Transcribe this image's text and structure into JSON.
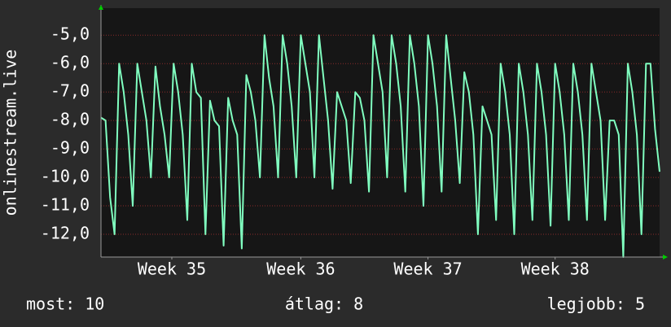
{
  "chart_data": {
    "type": "line",
    "ylabel": "onlinestream.live",
    "color": "#80ffc0",
    "grid": true,
    "ylim": [
      -12.8,
      -4.05
    ],
    "yticks": [
      {
        "value": -12,
        "label": "-12,0"
      },
      {
        "value": -11,
        "label": "-11,0"
      },
      {
        "value": -10,
        "label": "-10,0"
      },
      {
        "value": -9,
        "label": "-9,0"
      },
      {
        "value": -8,
        "label": "-8,0"
      },
      {
        "value": -7,
        "label": "-7,0"
      },
      {
        "value": -6,
        "label": "-6,0"
      },
      {
        "value": -5,
        "label": "-5,0"
      }
    ],
    "xlim": [
      0,
      30.75
    ],
    "xticks": [
      {
        "value": 3.9,
        "label": "Week 35"
      },
      {
        "value": 11,
        "label": "Week 36"
      },
      {
        "value": 18,
        "label": "Week 37"
      },
      {
        "value": 25,
        "label": "Week 38"
      }
    ],
    "x": [
      0,
      0.25,
      0.5,
      0.75,
      1,
      1.25,
      1.5,
      1.75,
      2,
      2.25,
      2.5,
      2.75,
      3,
      3.25,
      3.5,
      3.75,
      4,
      4.25,
      4.5,
      4.75,
      5,
      5.25,
      5.5,
      5.75,
      6,
      6.25,
      6.5,
      6.75,
      7,
      7.25,
      7.5,
      7.75,
      8,
      8.25,
      8.5,
      8.75,
      9,
      9.25,
      9.5,
      9.75,
      10,
      10.25,
      10.5,
      10.75,
      11,
      11.25,
      11.5,
      11.75,
      12,
      12.25,
      12.5,
      12.75,
      13,
      13.25,
      13.5,
      13.75,
      14,
      14.25,
      14.5,
      14.75,
      15,
      15.25,
      15.5,
      15.75,
      16,
      16.25,
      16.5,
      16.75,
      17,
      17.25,
      17.5,
      17.75,
      18,
      18.25,
      18.5,
      18.75,
      19,
      19.25,
      19.5,
      19.75,
      20,
      20.25,
      20.5,
      20.75,
      21,
      21.25,
      21.5,
      21.75,
      22,
      22.25,
      22.5,
      22.75,
      23,
      23.25,
      23.5,
      23.75,
      24,
      24.25,
      24.5,
      24.75,
      25,
      25.25,
      25.5,
      25.75,
      26,
      26.25,
      26.5,
      26.75,
      27,
      27.25,
      27.5,
      27.75,
      28,
      28.25,
      28.5,
      28.75,
      29,
      29.25,
      29.5,
      29.75,
      30,
      30.25,
      30.5,
      30.75
    ],
    "values": [
      -7.9,
      -8.0,
      -10.7,
      -12.0,
      -6.0,
      -7.0,
      -8.5,
      -11.0,
      -6.0,
      -7.0,
      -8.0,
      -10.0,
      -6.1,
      -7.5,
      -8.5,
      -10.0,
      -6.0,
      -7.0,
      -8.5,
      -11.5,
      -6.0,
      -7.0,
      -7.2,
      -12.0,
      -7.3,
      -8.0,
      -8.2,
      -12.4,
      -7.2,
      -8.0,
      -8.5,
      -12.5,
      -6.4,
      -7.0,
      -8.0,
      -10.0,
      -5.0,
      -6.5,
      -7.5,
      -10.0,
      -5.0,
      -6.0,
      -7.5,
      -10.0,
      -5.0,
      -6.0,
      -7.0,
      -10.0,
      -5.0,
      -6.5,
      -8.0,
      -10.4,
      -7.0,
      -7.5,
      -8.0,
      -10.2,
      -7.0,
      -7.2,
      -8.0,
      -10.5,
      -5.0,
      -6.0,
      -7.0,
      -10.0,
      -5.0,
      -6.0,
      -7.5,
      -10.5,
      -5.0,
      -6.0,
      -7.5,
      -11.0,
      -5.0,
      -6.0,
      -7.5,
      -10.5,
      -5.0,
      -6.5,
      -8.0,
      -10.2,
      -6.3,
      -7.0,
      -8.5,
      -12.0,
      -7.5,
      -8.0,
      -8.5,
      -11.5,
      -6.0,
      -7.0,
      -8.5,
      -12.0,
      -6.0,
      -7.0,
      -8.5,
      -11.5,
      -6.0,
      -7.0,
      -8.5,
      -11.7,
      -6.0,
      -7.0,
      -8.5,
      -11.5,
      -6.0,
      -7.0,
      -8.5,
      -11.5,
      -6.0,
      -7.0,
      -8.0,
      -11.5,
      -8.0,
      -8.0,
      -8.5,
      -12.8,
      -6.0,
      -7.0,
      -8.5,
      -12.0,
      -6.0,
      -6.0,
      -8.3,
      -9.8
    ],
    "stats": [
      "most: 10",
      "átlag: 8",
      "legjobb: 5"
    ]
  }
}
